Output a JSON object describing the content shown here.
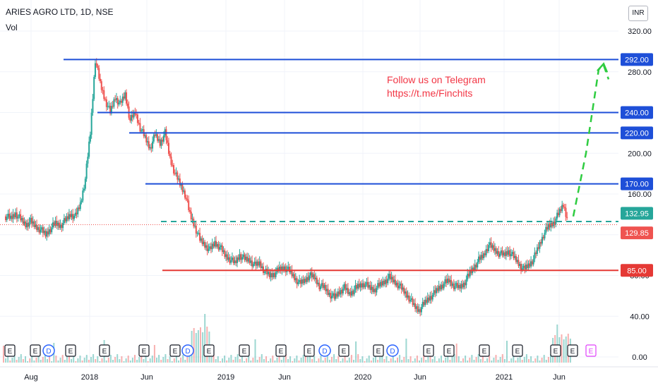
{
  "header": {
    "title": "ARIES AGRO LTD, 1D, NSE",
    "volume_label": "Vol",
    "currency": "INR"
  },
  "annotation": {
    "line1": "Follow us on Telegram",
    "line2": "https://t.me/Finchits"
  },
  "chart_data": {
    "type": "line",
    "ylim": [
      0,
      340
    ],
    "yticks": [
      0,
      40,
      80,
      120,
      160,
      200,
      240,
      280,
      320
    ],
    "ytick_labels": [
      "0.00",
      "40.00",
      "80.00",
      "120.00",
      "160.00",
      "200.00",
      "240.00",
      "280.00",
      "320.00"
    ],
    "xtick_labels": [
      "Aug",
      "2018",
      "Jun",
      "2019",
      "Jun",
      "2020",
      "Jun",
      "2021",
      "Jun"
    ],
    "series": [
      {
        "values": [
          138,
          136,
          141,
          135,
          130,
          133,
          128,
          125,
          120,
          126,
          131,
          129,
          134,
          140,
          138,
          150,
          175,
          220,
          292,
          268,
          252,
          240,
          255,
          248,
          258,
          232,
          240,
          225,
          215,
          205,
          218,
          210,
          220,
          195,
          180,
          170,
          160,
          140,
          128,
          115,
          110,
          105,
          112,
          108,
          100,
          96,
          92,
          100,
          96,
          95,
          90,
          92,
          84,
          80,
          82,
          86,
          88,
          84,
          78,
          72,
          75,
          80,
          78,
          70,
          68,
          62,
          58,
          64,
          68,
          62,
          66,
          70,
          72,
          68,
          66,
          70,
          74,
          78,
          74,
          70,
          64,
          58,
          50,
          46,
          52,
          58,
          62,
          68,
          72,
          75,
          70,
          68,
          72,
          80,
          88,
          95,
          100,
          110,
          106,
          102,
          100,
          104,
          98,
          92,
          86,
          90,
          96,
          108,
          120,
          128,
          132,
          140,
          150,
          132
        ]
      }
    ],
    "levels": [
      {
        "value": 292,
        "label": "292.00",
        "color": "#1e4fd8"
      },
      {
        "value": 240,
        "label": "240.00",
        "color": "#1e4fd8"
      },
      {
        "value": 220,
        "label": "220.00",
        "color": "#1e4fd8"
      },
      {
        "value": 170,
        "label": "170.00",
        "color": "#1e4fd8"
      },
      {
        "value": 85,
        "label": "85.00",
        "color": "#e53935"
      }
    ],
    "breakout_level": {
      "value": 133,
      "label": "132.95",
      "color": "#26a69a"
    },
    "last_price": {
      "value": 129.85,
      "label": "129.85",
      "color": "#ef5350"
    },
    "projection_target": 292,
    "event_markers": [
      "E",
      "E",
      "D",
      "E",
      "E",
      "E",
      "E",
      "D",
      "E",
      "E",
      "E",
      "E",
      "D",
      "E",
      "E",
      "D",
      "E",
      "E",
      "E",
      "E",
      "E",
      "E",
      "E"
    ],
    "colors": {
      "up": "#26a69a",
      "down": "#ef5350",
      "projection": "#2ecc40"
    }
  }
}
